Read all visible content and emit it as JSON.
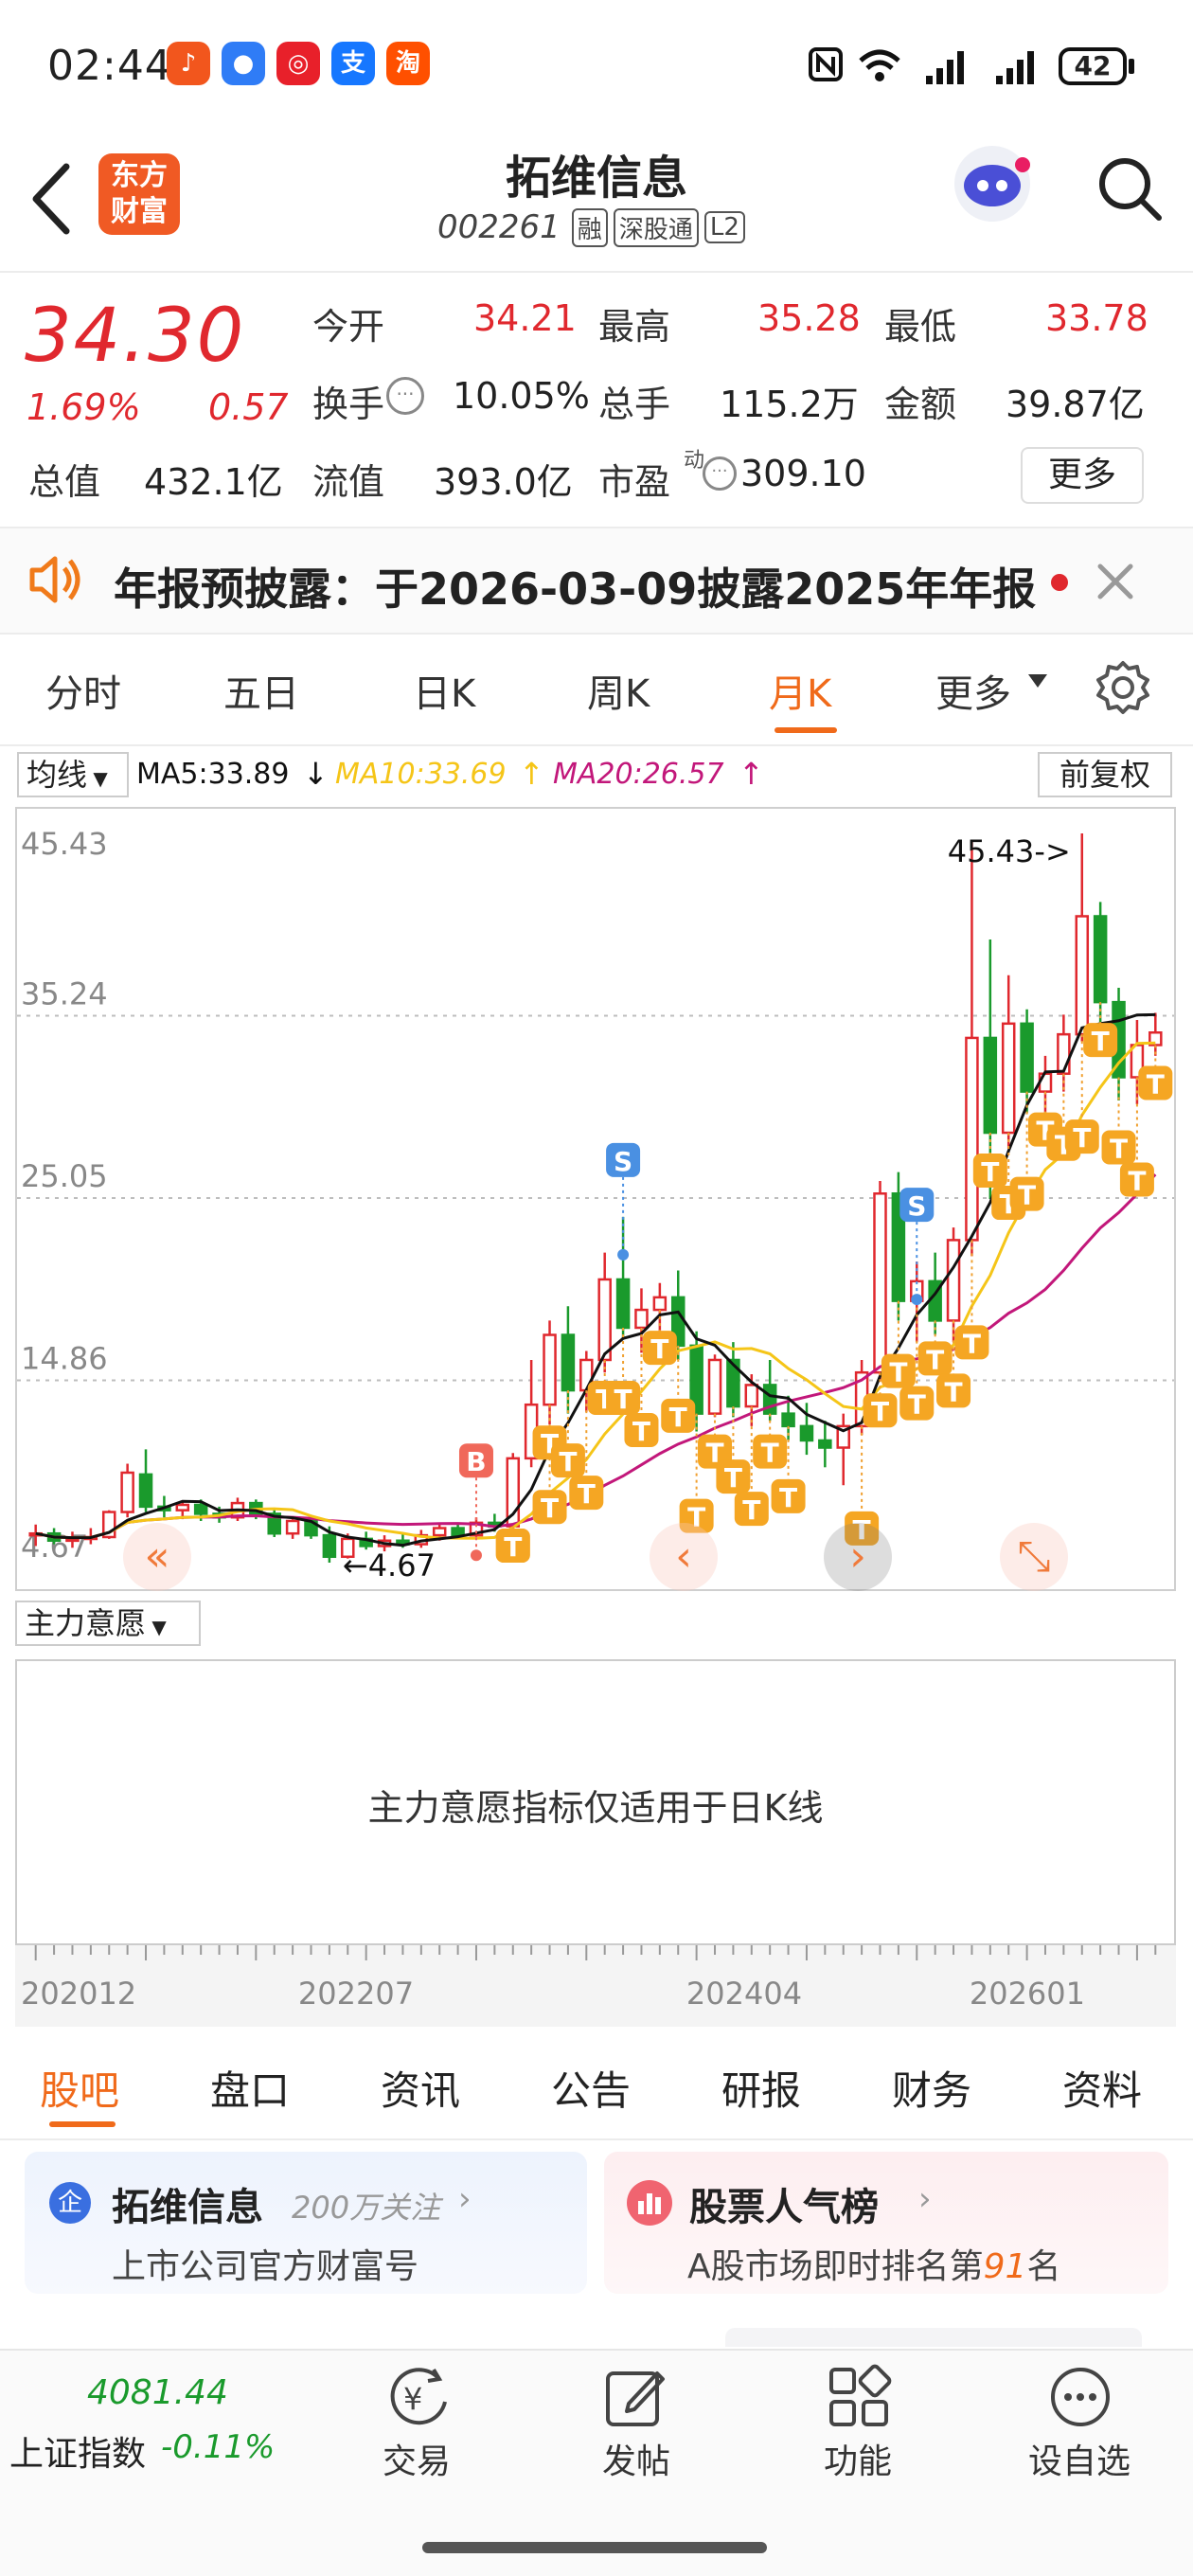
{
  "status_bar": {
    "time": "02:44",
    "battery": "42",
    "apps": [
      {
        "name": "app-orange-icon",
        "color": "#f2561d",
        "glyph": "♪"
      },
      {
        "name": "message-icon",
        "color": "#2f7cf6",
        "glyph": "●"
      },
      {
        "name": "app-red-icon",
        "color": "#e8202a",
        "glyph": "◎"
      },
      {
        "name": "alipay-icon",
        "color": "#1677ff",
        "glyph": "支"
      },
      {
        "name": "taobao-icon",
        "color": "#ff5000",
        "glyph": "淘"
      }
    ]
  },
  "header": {
    "title": "拓维信息",
    "code": "002261",
    "tags": [
      "融",
      "深股通",
      "L2"
    ],
    "logo_text_1": "东方",
    "logo_text_2": "财富"
  },
  "quote": {
    "price": "34.30",
    "change_pct": "1.69%",
    "change_amt": "0.57",
    "open_label": "今开",
    "open": "34.21",
    "high_label": "最高",
    "high": "35.28",
    "low_label": "最低",
    "low": "33.78",
    "turnover_label": "换手",
    "turnover": "10.05%",
    "volume_label": "总手",
    "volume": "115.2万",
    "amount_label": "金额",
    "amount": "39.87亿",
    "mktcap_label": "总值",
    "mktcap": "432.1亿",
    "float_label": "流值",
    "float": "393.0亿",
    "pe_label": "市盈",
    "pe_sup": "动",
    "pe": "309.10",
    "more_label": "更多"
  },
  "notice": {
    "text": "年报预披露：于2026-03-09披露2025年年报"
  },
  "chart_tabs": {
    "items": [
      "分时",
      "五日",
      "日K",
      "周K",
      "月K",
      "更多"
    ],
    "active": "月K"
  },
  "ma_bar": {
    "selector": "均线",
    "ma5": "MA5:33.89",
    "ma10": "MA10:33.69",
    "ma20": "MA20:26.57",
    "adjust": "前复权"
  },
  "chart_data": {
    "type": "candlestick",
    "y_ticks": [
      "45.43",
      "35.24",
      "25.05",
      "14.86",
      "4.67"
    ],
    "ylim": [
      4.67,
      45.43
    ],
    "max_label": "45.43->",
    "min_label": "4.67",
    "x_ticks": [
      "202012",
      "202207",
      "202404",
      "202601"
    ],
    "colors": {
      "up": "#e0282e",
      "down": "#1a9a2c",
      "ma5": "#111111",
      "ma10": "#f5c518",
      "ma20": "#c2177a"
    },
    "candles": [
      [
        6.2,
        6.8,
        5.6,
        6.3
      ],
      [
        6.3,
        6.6,
        5.7,
        5.9
      ],
      [
        5.9,
        6.4,
        5.5,
        6.0
      ],
      [
        6.0,
        6.6,
        5.7,
        6.1
      ],
      [
        6.1,
        7.6,
        6.0,
        7.5
      ],
      [
        7.5,
        10.2,
        7.2,
        9.7
      ],
      [
        9.6,
        11.0,
        7.5,
        7.8
      ],
      [
        7.8,
        8.4,
        7.2,
        7.6
      ],
      [
        7.6,
        8.1,
        7.1,
        7.9
      ],
      [
        7.9,
        8.2,
        7.0,
        7.4
      ],
      [
        7.4,
        7.8,
        6.9,
        7.2
      ],
      [
        7.2,
        8.3,
        7.0,
        8.0
      ],
      [
        8.0,
        8.2,
        7.1,
        7.4
      ],
      [
        7.4,
        7.6,
        6.1,
        6.3
      ],
      [
        6.3,
        7.1,
        6.0,
        7.0
      ],
      [
        7.0,
        7.3,
        6.0,
        6.2
      ],
      [
        6.2,
        6.7,
        4.67,
        5.0
      ],
      [
        5.0,
        6.3,
        4.9,
        6.0
      ],
      [
        6.0,
        6.4,
        5.4,
        5.6
      ],
      [
        5.6,
        6.2,
        5.3,
        5.9
      ],
      [
        5.9,
        6.3,
        5.5,
        5.7
      ],
      [
        5.7,
        6.5,
        5.5,
        6.2
      ],
      [
        6.2,
        6.9,
        5.9,
        6.6
      ],
      [
        6.6,
        6.9,
        6.0,
        6.2
      ],
      [
        6.2,
        7.2,
        6.0,
        6.9
      ],
      [
        6.9,
        7.4,
        6.4,
        6.7
      ],
      [
        6.7,
        10.8,
        6.6,
        10.5
      ],
      [
        10.5,
        16.0,
        10.0,
        13.5
      ],
      [
        13.5,
        18.2,
        12.4,
        17.4
      ],
      [
        17.4,
        19.0,
        13.0,
        14.3
      ],
      [
        14.3,
        16.5,
        13.1,
        16.0
      ],
      [
        16.0,
        22.0,
        15.3,
        20.5
      ],
      [
        20.5,
        24.0,
        17.2,
        17.8
      ],
      [
        17.8,
        20.0,
        16.4,
        18.8
      ],
      [
        18.8,
        20.3,
        17.2,
        19.5
      ],
      [
        19.5,
        21.0,
        16.0,
        16.8
      ],
      [
        16.8,
        17.6,
        12.0,
        13.0
      ],
      [
        13.0,
        16.3,
        12.8,
        16.0
      ],
      [
        16.0,
        17.0,
        12.8,
        13.4
      ],
      [
        13.4,
        15.2,
        12.3,
        14.6
      ],
      [
        14.6,
        16.0,
        12.6,
        13.0
      ],
      [
        13.0,
        14.0,
        11.5,
        12.3
      ],
      [
        12.3,
        13.6,
        10.7,
        11.5
      ],
      [
        11.5,
        12.6,
        10.0,
        11.1
      ],
      [
        11.1,
        13.0,
        9.0,
        12.3
      ],
      [
        12.3,
        16.0,
        11.8,
        15.3
      ],
      [
        15.3,
        26.0,
        14.8,
        25.3
      ],
      [
        25.3,
        26.5,
        18.2,
        19.3
      ],
      [
        19.3,
        21.5,
        17.0,
        20.4
      ],
      [
        20.4,
        22.0,
        17.4,
        18.2
      ],
      [
        18.2,
        23.4,
        17.0,
        22.7
      ],
      [
        22.7,
        45.0,
        21.8,
        34.0
      ],
      [
        34.0,
        39.5,
        25.0,
        28.7
      ],
      [
        28.7,
        37.5,
        27.8,
        34.8
      ],
      [
        34.8,
        35.6,
        29.8,
        31.0
      ],
      [
        31.0,
        33.0,
        28.5,
        32.0
      ],
      [
        32.0,
        35.3,
        31.0,
        34.2
      ],
      [
        34.2,
        45.43,
        33.8,
        40.8
      ],
      [
        40.8,
        41.6,
        34.5,
        36.0
      ],
      [
        36.0,
        36.8,
        30.5,
        31.8
      ],
      [
        31.8,
        35.0,
        30.3,
        33.6
      ],
      [
        33.6,
        35.4,
        33.0,
        34.3
      ]
    ],
    "markers": [
      {
        "i": 24,
        "type": "B"
      },
      {
        "i": 32,
        "type": "S"
      },
      {
        "i": 48,
        "type": "S"
      }
    ],
    "t_markers": [
      26,
      26,
      28,
      28,
      29,
      30,
      31,
      32,
      33,
      34,
      35,
      36,
      37,
      38,
      39,
      40,
      41,
      45,
      46,
      47,
      48,
      49,
      50,
      51,
      52,
      53,
      54,
      55,
      56,
      57,
      58,
      59,
      60,
      61
    ]
  },
  "indicator": {
    "selector": "主力意愿",
    "message": "主力意愿指标仅适用于日K线"
  },
  "section_tabs": {
    "items": [
      "股吧",
      "盘口",
      "资讯",
      "公告",
      "研报",
      "财务",
      "资料"
    ],
    "active": "股吧"
  },
  "cards": {
    "left": {
      "title": "拓维信息",
      "follow": "200万关注",
      "sub": "上市公司官方财富号",
      "badge": "企"
    },
    "right": {
      "title": "股票人气榜",
      "sub_prefix": "A股市场即时排名第",
      "rank": "91",
      "sub_suffix": "名"
    }
  },
  "bottom_nav": {
    "index_value": "4081.44",
    "index_name": "上证指数",
    "index_change": "-0.11%",
    "items": [
      "交易",
      "发帖",
      "功能",
      "设自选"
    ]
  }
}
